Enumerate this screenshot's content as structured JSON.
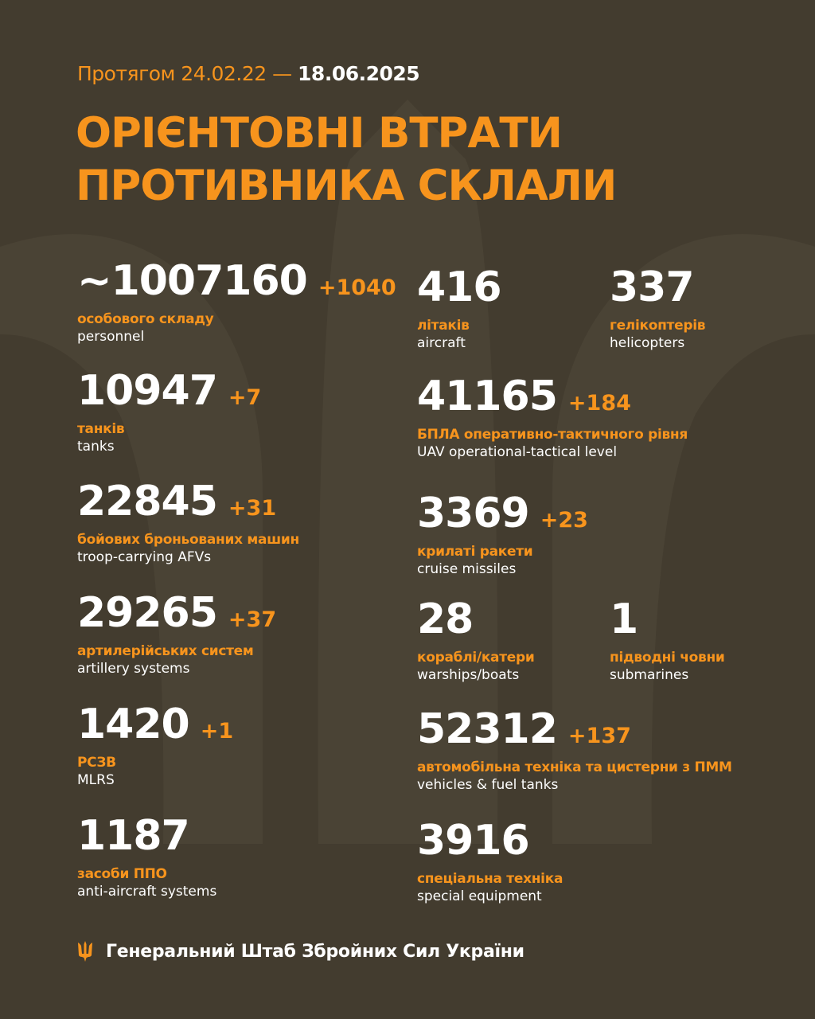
{
  "header": {
    "period_prefix": "Протягом 24.02.22 —",
    "period_end": "18.06.2025",
    "title_line1": "ОРІЄНТОВНІ ВТРАТИ",
    "title_line2": "ПРОТИВНИКА СКЛАЛИ"
  },
  "colors": {
    "background": "#433c2f",
    "accent": "#f7941d",
    "text": "#ffffff"
  },
  "left": [
    {
      "value": "~1007160",
      "delta": "+1040",
      "ua": "особового складу",
      "en": "personnel"
    },
    {
      "value": "10947",
      "delta": "+7",
      "ua": "танків",
      "en": "tanks"
    },
    {
      "value": "22845",
      "delta": "+31",
      "ua": "бойових броньованих машин",
      "en": "troop-carrying AFVs"
    },
    {
      "value": "29265",
      "delta": "+37",
      "ua": "артилерійських систем",
      "en": "artillery systems"
    },
    {
      "value": "1420",
      "delta": "+1",
      "ua": "РСЗВ",
      "en": "MLRS"
    },
    {
      "value": "1187",
      "delta": "",
      "ua": "засоби ППО",
      "en": "anti-aircraft systems"
    }
  ],
  "right": [
    {
      "value": "416",
      "delta": "",
      "ua": "літаків",
      "en": "aircraft"
    },
    {
      "value": "337",
      "delta": "",
      "ua": "гелікоптерів",
      "en": "helicopters"
    },
    {
      "value": "41165",
      "delta": "+184",
      "ua": "БПЛА оперативно-тактичного рівня",
      "en": "UAV operational-tactical level"
    },
    {
      "value": "3369",
      "delta": "+23",
      "ua": "крилаті ракети",
      "en": "cruise missiles"
    },
    {
      "value": "28",
      "delta": "",
      "ua": "кораблі/катери",
      "en": "warships/boats"
    },
    {
      "value": "1",
      "delta": "",
      "ua": "підводні човни",
      "en": "submarines"
    },
    {
      "value": "52312",
      "delta": "+137",
      "ua": "автомобільна техніка та цистерни з ПММ",
      "en": "vehicles & fuel tanks"
    },
    {
      "value": "3916",
      "delta": "",
      "ua": "спеціальна техніка",
      "en": "special equipment"
    }
  ],
  "footer": {
    "icon": "trident-icon",
    "text": "Генеральний Штаб Збройних Сил України"
  }
}
